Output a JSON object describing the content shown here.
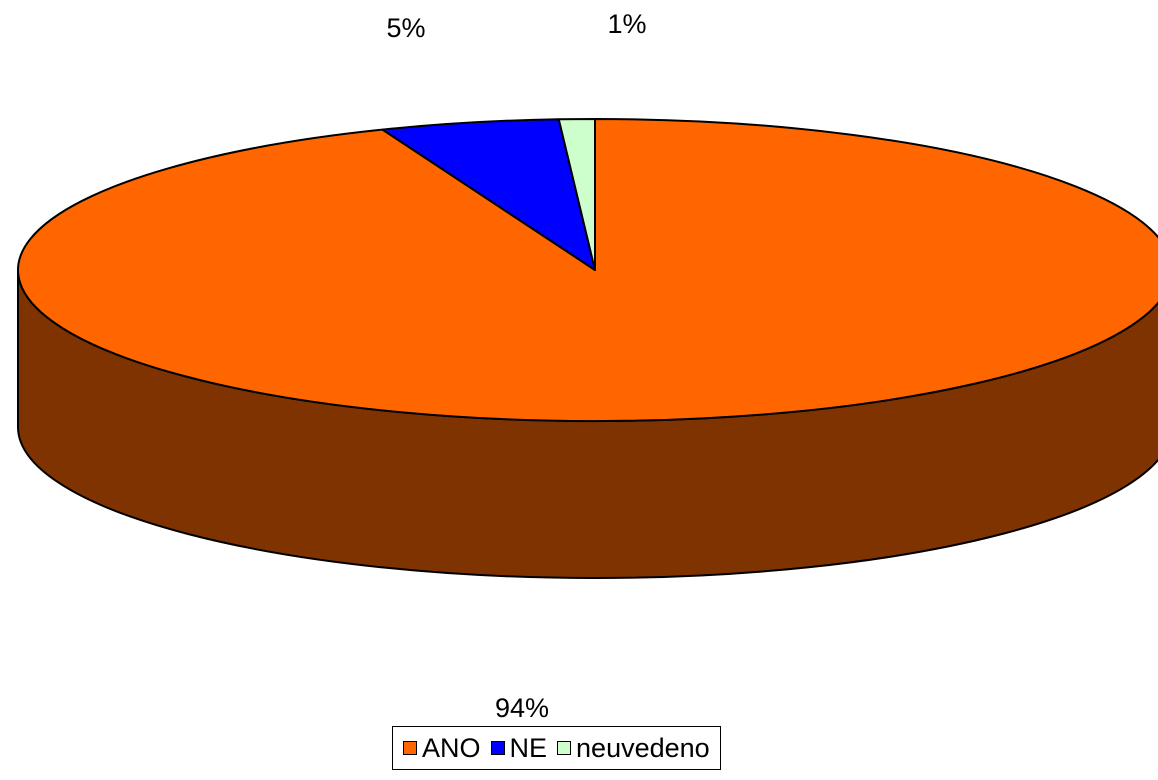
{
  "chart_data": {
    "type": "pie",
    "style": "3d",
    "labels": [
      "ANO",
      "NE",
      "neuvedeno"
    ],
    "values": [
      94,
      5,
      1
    ],
    "data_labels": [
      "94%",
      "5%",
      "1%"
    ],
    "colors": [
      "#FF6600",
      "#0000FF",
      "#CCFFCC"
    ],
    "side_color": "#7F3300",
    "legend_position": "bottom",
    "start_angle_deg": 90,
    "direction": "clockwise"
  }
}
